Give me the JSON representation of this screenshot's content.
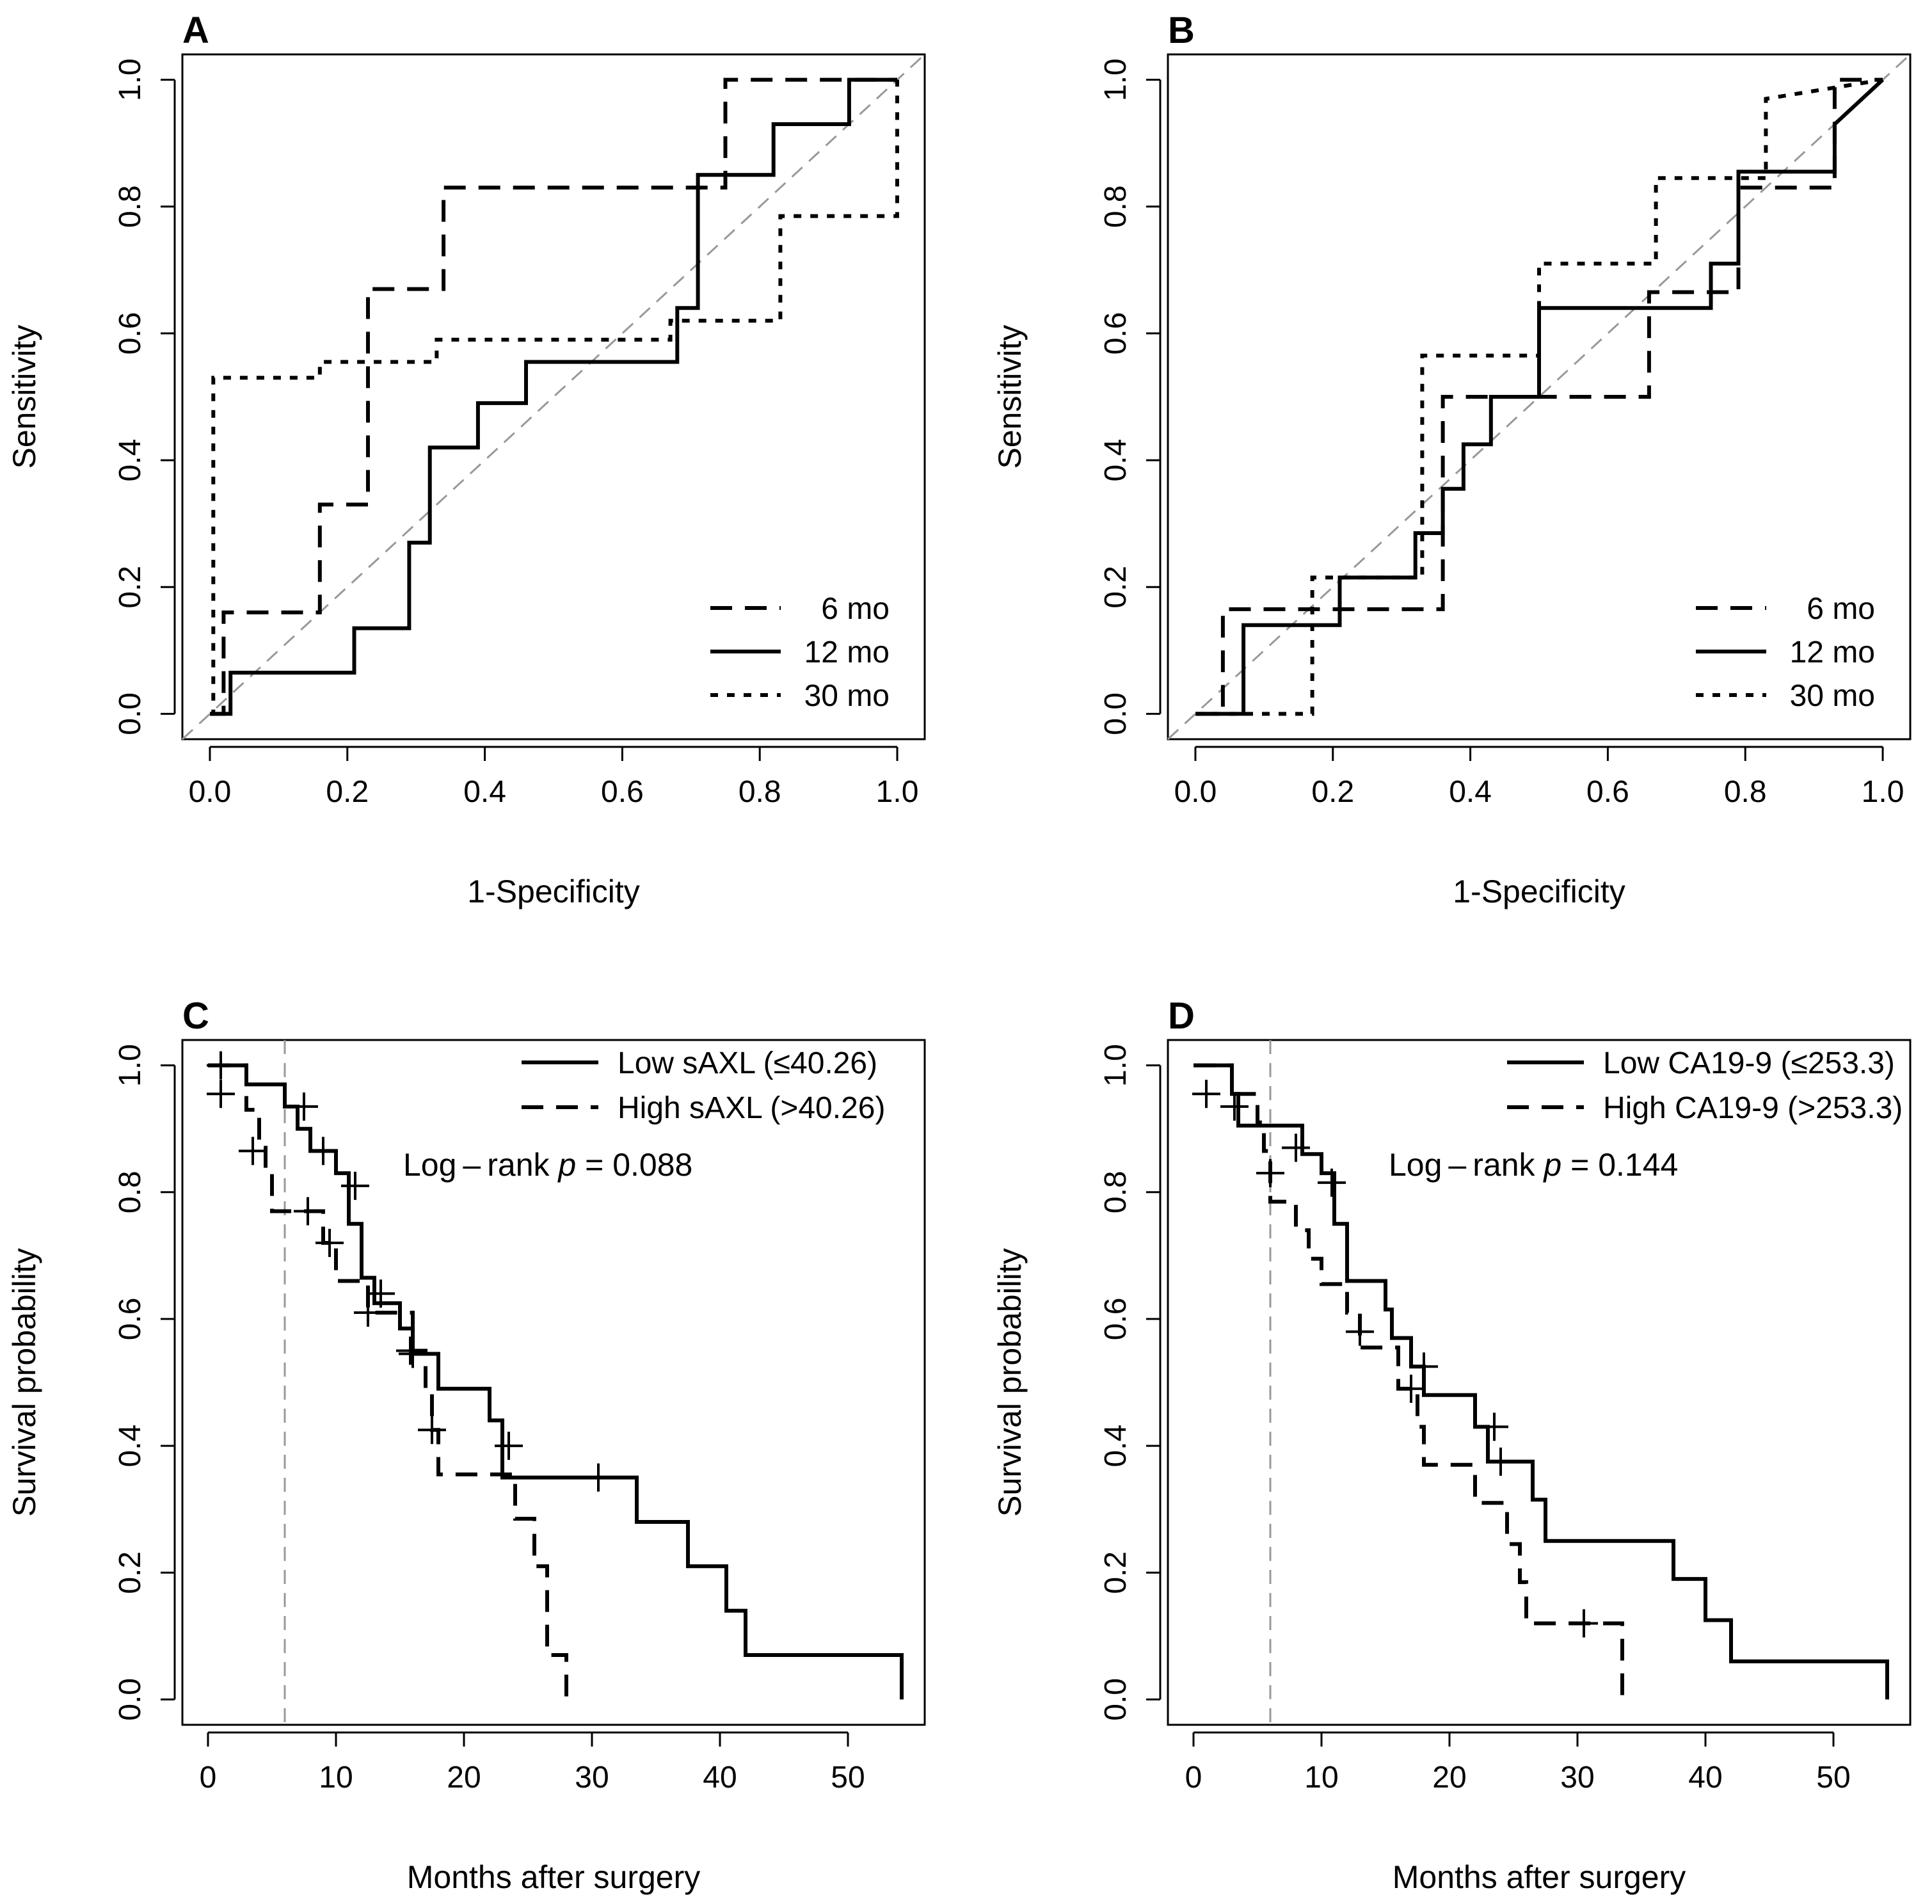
{
  "chart_data": [
    {
      "panel": "A",
      "type": "line",
      "subtype": "roc",
      "xlabel": "1-Specificity",
      "ylabel": "Sensitivity",
      "xlim": [
        0,
        1
      ],
      "ylim": [
        0,
        1
      ],
      "xticks": [
        "0.0",
        "0.2",
        "0.4",
        "0.6",
        "0.8",
        "1.0"
      ],
      "yticks": [
        "0.0",
        "0.2",
        "0.4",
        "0.6",
        "0.8",
        "1.0"
      ],
      "diagonal_color": "#999999",
      "legend": {
        "position": "bottom-right"
      },
      "series": [
        {
          "name": "6 mo",
          "style": "dashed",
          "x": [
            0,
            0.02,
            0.02,
            0.16,
            0.16,
            0.23,
            0.23,
            0.34,
            0.34,
            0.75,
            0.75,
            1.0
          ],
          "y": [
            0,
            0,
            0.16,
            0.16,
            0.33,
            0.33,
            0.67,
            0.67,
            0.83,
            0.83,
            1.0,
            1.0
          ]
        },
        {
          "name": "12 mo",
          "style": "solid",
          "x": [
            0,
            0.03,
            0.03,
            0.21,
            0.21,
            0.29,
            0.29,
            0.32,
            0.32,
            0.39,
            0.39,
            0.46,
            0.46,
            0.68,
            0.68,
            0.71,
            0.71,
            0.82,
            0.82,
            0.93,
            0.93,
            1.0
          ],
          "y": [
            0,
            0,
            0.065,
            0.065,
            0.135,
            0.135,
            0.27,
            0.27,
            0.42,
            0.42,
            0.49,
            0.49,
            0.555,
            0.555,
            0.64,
            0.64,
            0.85,
            0.85,
            0.93,
            0.93,
            1.0,
            1.0
          ]
        },
        {
          "name": "30 mo",
          "style": "dotted",
          "x": [
            0,
            0.005,
            0.005,
            0.16,
            0.16,
            0.33,
            0.33,
            0.67,
            0.67,
            0.83,
            0.83,
            1.0,
            1.0
          ],
          "y": [
            0,
            0,
            0.53,
            0.53,
            0.555,
            0.555,
            0.59,
            0.59,
            0.62,
            0.62,
            0.785,
            0.785,
            1.0
          ]
        }
      ]
    },
    {
      "panel": "B",
      "type": "line",
      "subtype": "roc",
      "xlabel": "1-Specificity",
      "ylabel": "Sensitivity",
      "xlim": [
        0,
        1
      ],
      "ylim": [
        0,
        1
      ],
      "xticks": [
        "0.0",
        "0.2",
        "0.4",
        "0.6",
        "0.8",
        "1.0"
      ],
      "yticks": [
        "0.0",
        "0.2",
        "0.4",
        "0.6",
        "0.8",
        "1.0"
      ],
      "diagonal_color": "#999999",
      "legend": {
        "position": "bottom-right"
      },
      "series": [
        {
          "name": "6 mo",
          "style": "dashed",
          "x": [
            0,
            0.04,
            0.04,
            0.36,
            0.36,
            0.66,
            0.66,
            0.79,
            0.79,
            0.93,
            0.93,
            1.0
          ],
          "y": [
            0,
            0,
            0.165,
            0.165,
            0.5,
            0.5,
            0.665,
            0.665,
            0.83,
            0.83,
            1.0,
            1.0
          ]
        },
        {
          "name": "12 mo",
          "style": "solid",
          "x": [
            0,
            0.07,
            0.07,
            0.21,
            0.21,
            0.32,
            0.32,
            0.36,
            0.36,
            0.39,
            0.39,
            0.43,
            0.43,
            0.5,
            0.5,
            0.75,
            0.75,
            0.79,
            0.79,
            0.93,
            0.93,
            1.0
          ],
          "y": [
            0,
            0,
            0.14,
            0.14,
            0.215,
            0.215,
            0.285,
            0.285,
            0.355,
            0.355,
            0.425,
            0.425,
            0.5,
            0.5,
            0.64,
            0.64,
            0.71,
            0.71,
            0.855,
            0.855,
            0.93,
            1.0
          ]
        },
        {
          "name": "30 mo",
          "style": "dotted",
          "x": [
            0,
            0.17,
            0.17,
            0.33,
            0.33,
            0.5,
            0.5,
            0.67,
            0.67,
            0.83,
            0.83,
            1.0
          ],
          "y": [
            0,
            0,
            0.215,
            0.215,
            0.565,
            0.565,
            0.71,
            0.71,
            0.845,
            0.845,
            0.97,
            1.0
          ]
        }
      ]
    },
    {
      "panel": "C",
      "type": "line",
      "subtype": "kaplan-meier",
      "xlabel": "Months after surgery",
      "ylabel": "Survival probability",
      "xlim": [
        -2,
        56
      ],
      "ylim": [
        0,
        1
      ],
      "xticks": [
        "0",
        "10",
        "20",
        "30",
        "40",
        "50"
      ],
      "yticks": [
        "0.0",
        "0.2",
        "0.4",
        "0.6",
        "0.8",
        "1.0"
      ],
      "reference_line_x": 6,
      "reference_line_color": "#999999",
      "legend": {
        "position": "top-right"
      },
      "annotation": {
        "prefix": "Log – rank ",
        "p_symbol": "p",
        "suffix": " = 0.088"
      },
      "series": [
        {
          "name": "Low sAXL (≤40.26)",
          "style": "solid",
          "x": [
            0,
            3,
            3,
            6,
            6,
            7,
            7,
            8,
            8,
            10,
            10,
            11,
            11,
            12,
            12,
            13,
            13,
            15,
            15,
            16,
            16,
            18,
            18,
            22,
            22,
            23,
            23,
            33.5,
            33.5,
            37.5,
            37.5,
            40.5,
            40.5,
            42,
            42,
            54.2,
            54.2
          ],
          "y": [
            1.0,
            1.0,
            0.97,
            0.97,
            0.935,
            0.935,
            0.9,
            0.9,
            0.865,
            0.865,
            0.83,
            0.83,
            0.75,
            0.75,
            0.665,
            0.665,
            0.625,
            0.625,
            0.585,
            0.585,
            0.545,
            0.545,
            0.49,
            0.49,
            0.44,
            0.44,
            0.35,
            0.35,
            0.28,
            0.28,
            0.21,
            0.21,
            0.14,
            0.14,
            0.07,
            0.07,
            0.0
          ],
          "censor": [
            [
              1,
              1.0
            ],
            [
              7.5,
              0.935
            ],
            [
              9,
              0.865
            ],
            [
              11.5,
              0.81
            ],
            [
              13.5,
              0.64
            ],
            [
              16,
              0.545
            ],
            [
              23.5,
              0.4
            ],
            [
              30.5,
              0.35
            ]
          ]
        },
        {
          "name": "High sAXL (>40.26)",
          "style": "dashed",
          "x": [
            0,
            3,
            3,
            4,
            4,
            4.5,
            4.5,
            5,
            5,
            9,
            9,
            10,
            10,
            12.5,
            12.5,
            16,
            16,
            17,
            17,
            17.5,
            17.5,
            18,
            18,
            24,
            24,
            25.5,
            25.5,
            26.5,
            26.5,
            28,
            28
          ],
          "y": [
            1.0,
            1.0,
            0.93,
            0.93,
            0.87,
            0.87,
            0.83,
            0.83,
            0.77,
            0.77,
            0.72,
            0.72,
            0.66,
            0.66,
            0.61,
            0.61,
            0.55,
            0.55,
            0.49,
            0.49,
            0.425,
            0.425,
            0.355,
            0.355,
            0.285,
            0.285,
            0.21,
            0.21,
            0.07,
            0.07,
            0.0
          ],
          "censor": [
            [
              1,
              0.955
            ],
            [
              3.5,
              0.865
            ],
            [
              7.8,
              0.77
            ],
            [
              9.5,
              0.72
            ],
            [
              12.5,
              0.61
            ],
            [
              15.8,
              0.55
            ],
            [
              17.5,
              0.425
            ]
          ]
        }
      ]
    },
    {
      "panel": "D",
      "type": "line",
      "subtype": "kaplan-meier",
      "xlabel": "Months after surgery",
      "ylabel": "Survival probability",
      "xlim": [
        -2,
        56
      ],
      "ylim": [
        0,
        1
      ],
      "xticks": [
        "0",
        "10",
        "20",
        "30",
        "40",
        "50"
      ],
      "yticks": [
        "0.0",
        "0.2",
        "0.4",
        "0.6",
        "0.8",
        "1.0"
      ],
      "reference_line_x": 6,
      "reference_line_color": "#999999",
      "legend": {
        "position": "top-right"
      },
      "annotation": {
        "prefix": "Log – rank ",
        "p_symbol": "p",
        "suffix": " = 0.144"
      },
      "series": [
        {
          "name": "Low CA19-9 (≤253.3)",
          "style": "solid",
          "x": [
            0,
            3,
            3,
            3.5,
            3.5,
            8.5,
            8.5,
            10,
            10,
            11,
            11,
            12,
            12,
            15,
            15,
            15.5,
            15.5,
            17,
            17,
            18,
            18,
            22,
            22,
            23,
            23,
            26.5,
            26.5,
            27.5,
            27.5,
            37.5,
            37.5,
            40,
            40,
            42,
            42,
            54.2,
            54.2
          ],
          "y": [
            1.0,
            1.0,
            0.955,
            0.955,
            0.905,
            0.905,
            0.86,
            0.86,
            0.83,
            0.83,
            0.75,
            0.75,
            0.66,
            0.66,
            0.615,
            0.615,
            0.57,
            0.57,
            0.525,
            0.525,
            0.48,
            0.48,
            0.43,
            0.43,
            0.375,
            0.375,
            0.315,
            0.315,
            0.25,
            0.25,
            0.19,
            0.19,
            0.125,
            0.125,
            0.06,
            0.06,
            0.0
          ],
          "censor": [
            [
              1,
              0.955
            ],
            [
              8,
              0.87
            ],
            [
              10.8,
              0.815
            ],
            [
              18,
              0.525
            ],
            [
              23.5,
              0.43
            ],
            [
              24,
              0.375
            ],
            [
              30.5,
              0.12
            ]
          ]
        },
        {
          "name": "High CA19-9 (>253.3)",
          "style": "dashed",
          "x": [
            0,
            3,
            3,
            5,
            5,
            5.5,
            5.5,
            6,
            6,
            8,
            8,
            9,
            9,
            10,
            10,
            12,
            12,
            13,
            13,
            16,
            16,
            17.5,
            17.5,
            18,
            18,
            22,
            22,
            24.5,
            24.5,
            25.5,
            25.5,
            26,
            26,
            33.5,
            33.5
          ],
          "y": [
            1.0,
            1.0,
            0.955,
            0.955,
            0.91,
            0.91,
            0.865,
            0.865,
            0.785,
            0.785,
            0.74,
            0.74,
            0.695,
            0.695,
            0.655,
            0.655,
            0.61,
            0.61,
            0.555,
            0.555,
            0.49,
            0.49,
            0.43,
            0.43,
            0.37,
            0.37,
            0.31,
            0.31,
            0.245,
            0.245,
            0.185,
            0.185,
            0.12,
            0.12,
            0.0
          ],
          "censor": [
            [
              3.2,
              0.935
            ],
            [
              6,
              0.83
            ],
            [
              13,
              0.58
            ],
            [
              17,
              0.49
            ],
            [
              30.5,
              0.12
            ]
          ]
        }
      ]
    }
  ]
}
